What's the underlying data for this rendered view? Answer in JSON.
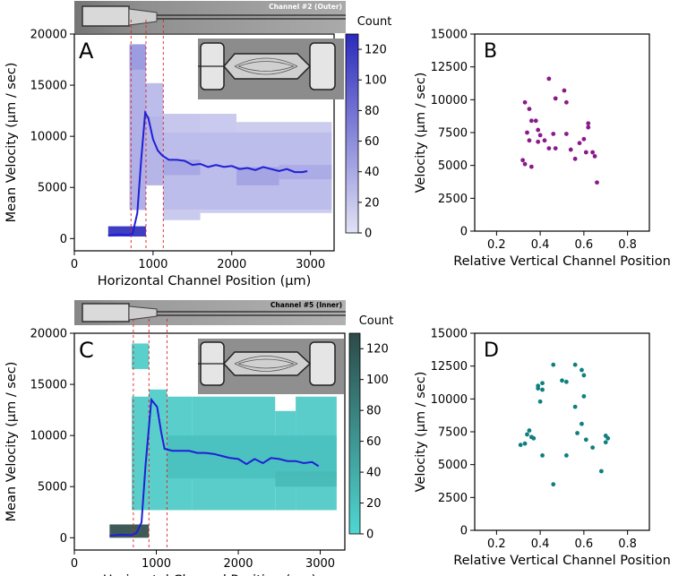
{
  "chart_data": [
    {
      "id": "A",
      "type": "line",
      "panel_label": "A",
      "image_caption": "Channel #2 (Outer)",
      "xlabel": "Horizontal Channel Position (µm)",
      "ylabel": "Mean Velocity (µm / sec)",
      "xlim": [
        0,
        3300
      ],
      "ylim": [
        -1200,
        20000
      ],
      "xticks": [
        0,
        1000,
        2000,
        3000
      ],
      "yticks": [
        0,
        5000,
        10000,
        15000,
        20000
      ],
      "line_color": "#1f1fd6",
      "line": {
        "x": [
          430,
          560,
          680,
          740,
          800,
          850,
          900,
          940,
          1000,
          1060,
          1120,
          1200,
          1300,
          1400,
          1500,
          1600,
          1700,
          1800,
          1900,
          2000,
          2100,
          2200,
          2300,
          2400,
          2500,
          2600,
          2700,
          2800,
          2900,
          2960
        ],
        "y": [
          300,
          400,
          350,
          450,
          2500,
          7800,
          12300,
          11800,
          9700,
          8600,
          8100,
          7700,
          7700,
          7600,
          7200,
          7300,
          7000,
          7200,
          7000,
          7100,
          6800,
          6900,
          6700,
          7000,
          6800,
          6600,
          6800,
          6500,
          6500,
          6600
        ]
      },
      "heatmap": {
        "colorbar_title": "Count",
        "colorbar_ticks": [
          0,
          20,
          40,
          60,
          80,
          100,
          120
        ],
        "vmax": 130,
        "color_low": "#e1e1f6",
        "color_high": "#2b2bbc",
        "cells": [
          {
            "x0": 430,
            "x1": 910,
            "y0": 200,
            "y1": 1200,
            "count": 128
          },
          {
            "x0": 700,
            "x1": 910,
            "y0": 16500,
            "y1": 19000,
            "count": 55
          },
          {
            "x0": 910,
            "x1": 1130,
            "y0": 12000,
            "y1": 15200,
            "count": 30
          },
          {
            "x0": 700,
            "x1": 910,
            "y0": 2800,
            "y1": 16500,
            "count": 40
          },
          {
            "x0": 910,
            "x1": 1130,
            "y0": 5200,
            "y1": 12000,
            "count": 36
          },
          {
            "x0": 1130,
            "x1": 1600,
            "y0": 10400,
            "y1": 12200,
            "count": 22
          },
          {
            "x0": 1600,
            "x1": 2060,
            "y0": 10400,
            "y1": 12200,
            "count": 20
          },
          {
            "x0": 1130,
            "x1": 3270,
            "y0": 2800,
            "y1": 10400,
            "count": 30
          },
          {
            "x0": 2060,
            "x1": 3270,
            "y0": 10400,
            "y1": 11400,
            "count": 18
          },
          {
            "x0": 1130,
            "x1": 1600,
            "y0": 6200,
            "y1": 7700,
            "count": 42
          },
          {
            "x0": 2060,
            "x1": 2600,
            "y0": 5200,
            "y1": 7000,
            "count": 44
          },
          {
            "x0": 2600,
            "x1": 3270,
            "y0": 5800,
            "y1": 7200,
            "count": 40
          },
          {
            "x0": 1130,
            "x1": 1600,
            "y0": 1800,
            "y1": 2800,
            "count": 20
          },
          {
            "x0": 1600,
            "x1": 3270,
            "y0": 2500,
            "y1": 2800,
            "count": 18
          }
        ]
      },
      "red_dashed_lines_x": [
        720,
        910,
        1130
      ]
    },
    {
      "id": "B",
      "type": "scatter",
      "panel_label": "B",
      "xlabel": "Relative Vertical Channel Position",
      "ylabel": "Velocity (µm / sec)",
      "xlim": [
        0.1,
        0.9
      ],
      "ylim": [
        0,
        15000
      ],
      "xticks": [
        0.2,
        0.4,
        0.6,
        0.8
      ],
      "xtick_labels": [
        "0.2",
        "0.4",
        "0.6",
        "0.8"
      ],
      "yticks": [
        0,
        2500,
        5000,
        7500,
        10000,
        12500,
        15000
      ],
      "point_color": "#8a1a8a",
      "points": [
        {
          "x": 0.33,
          "y": 9800
        },
        {
          "x": 0.35,
          "y": 9300
        },
        {
          "x": 0.36,
          "y": 8400
        },
        {
          "x": 0.38,
          "y": 8400
        },
        {
          "x": 0.34,
          "y": 7500
        },
        {
          "x": 0.35,
          "y": 6900
        },
        {
          "x": 0.39,
          "y": 7700
        },
        {
          "x": 0.4,
          "y": 7300
        },
        {
          "x": 0.39,
          "y": 6800
        },
        {
          "x": 0.32,
          "y": 5400
        },
        {
          "x": 0.33,
          "y": 5100
        },
        {
          "x": 0.36,
          "y": 4900
        },
        {
          "x": 0.44,
          "y": 11600
        },
        {
          "x": 0.47,
          "y": 10100
        },
        {
          "x": 0.51,
          "y": 10700
        },
        {
          "x": 0.52,
          "y": 9800
        },
        {
          "x": 0.46,
          "y": 7400
        },
        {
          "x": 0.42,
          "y": 6900
        },
        {
          "x": 0.44,
          "y": 6300
        },
        {
          "x": 0.47,
          "y": 6300
        },
        {
          "x": 0.52,
          "y": 7400
        },
        {
          "x": 0.54,
          "y": 6200
        },
        {
          "x": 0.56,
          "y": 5500
        },
        {
          "x": 0.58,
          "y": 6700
        },
        {
          "x": 0.6,
          "y": 7000
        },
        {
          "x": 0.62,
          "y": 7900
        },
        {
          "x": 0.62,
          "y": 8200
        },
        {
          "x": 0.61,
          "y": 6000
        },
        {
          "x": 0.64,
          "y": 6000
        },
        {
          "x": 0.65,
          "y": 5700
        },
        {
          "x": 0.66,
          "y": 3700
        }
      ]
    },
    {
      "id": "C",
      "type": "line",
      "panel_label": "C",
      "image_caption": "Channel #5 (Inner)",
      "xlabel": "Horizontal Channel Position (µm)",
      "ylabel": "Mean Velocity (µm / sec)",
      "xlim": [
        0,
        3300
      ],
      "ylim": [
        -1200,
        20000
      ],
      "xticks": [
        0,
        1000,
        2000,
        3000
      ],
      "yticks": [
        0,
        5000,
        10000,
        15000,
        20000
      ],
      "line_color": "#1f1fd6",
      "line": {
        "x": [
          430,
          560,
          700,
          760,
          820,
          870,
          940,
          1010,
          1060,
          1100,
          1200,
          1300,
          1400,
          1500,
          1600,
          1700,
          1800,
          1900,
          2000,
          2100,
          2200,
          2300,
          2400,
          2500,
          2600,
          2700,
          2800,
          2900,
          2980
        ],
        "y": [
          200,
          300,
          250,
          500,
          1500,
          7200,
          13500,
          12800,
          10300,
          8700,
          8500,
          8500,
          8500,
          8300,
          8300,
          8200,
          8000,
          7800,
          7700,
          7200,
          7700,
          7300,
          7800,
          7700,
          7500,
          7500,
          7300,
          7400,
          7000
        ]
      },
      "heatmap": {
        "colorbar_title": "Count",
        "colorbar_ticks": [
          0,
          20,
          40,
          60,
          80,
          100,
          120
        ],
        "vmax": 130,
        "color_low": "#4fd7d3",
        "color_high": "#2c4a48",
        "cells": [
          {
            "x0": 430,
            "x1": 910,
            "y0": 0,
            "y1": 1300,
            "count": 128
          },
          {
            "x0": 700,
            "x1": 910,
            "y0": 16500,
            "y1": 19000,
            "count": 10
          },
          {
            "x0": 910,
            "x1": 1130,
            "y0": 11700,
            "y1": 14500,
            "count": 10
          },
          {
            "x0": 700,
            "x1": 910,
            "y0": 2700,
            "y1": 13800,
            "count": 12
          },
          {
            "x0": 910,
            "x1": 1130,
            "y0": 2700,
            "y1": 11700,
            "count": 12
          },
          {
            "x0": 1130,
            "x1": 1440,
            "y0": 2700,
            "y1": 13800,
            "count": 12
          },
          {
            "x0": 1440,
            "x1": 2450,
            "y0": 2700,
            "y1": 13800,
            "count": 13
          },
          {
            "x0": 2450,
            "x1": 2700,
            "y0": 2700,
            "y1": 12400,
            "count": 13
          },
          {
            "x0": 2700,
            "x1": 3200,
            "y0": 2700,
            "y1": 13800,
            "count": 13
          },
          {
            "x0": 1130,
            "x1": 3200,
            "y0": 5800,
            "y1": 10000,
            "count": 20
          },
          {
            "x0": 2450,
            "x1": 3200,
            "y0": 5000,
            "y1": 6500,
            "count": 26
          }
        ]
      },
      "red_dashed_lines_x": [
        720,
        910,
        1130
      ]
    },
    {
      "id": "D",
      "type": "scatter",
      "panel_label": "D",
      "xlabel": "Relative Vertical Channel Position",
      "ylabel": "Velocity (µm / sec)",
      "xlim": [
        0.1,
        0.9
      ],
      "ylim": [
        0,
        15000
      ],
      "xticks": [
        0.2,
        0.4,
        0.6,
        0.8
      ],
      "xtick_labels": [
        "0.2",
        "0.4",
        "0.6",
        "0.8"
      ],
      "yticks": [
        0,
        2500,
        5000,
        7500,
        10000,
        12500,
        15000
      ],
      "point_color": "#0f7f7f",
      "points": [
        {
          "x": 0.46,
          "y": 12600
        },
        {
          "x": 0.56,
          "y": 12600
        },
        {
          "x": 0.59,
          "y": 12200
        },
        {
          "x": 0.6,
          "y": 11800
        },
        {
          "x": 0.39,
          "y": 11000
        },
        {
          "x": 0.41,
          "y": 11200
        },
        {
          "x": 0.5,
          "y": 11400
        },
        {
          "x": 0.52,
          "y": 11300
        },
        {
          "x": 0.39,
          "y": 10800
        },
        {
          "x": 0.41,
          "y": 10700
        },
        {
          "x": 0.4,
          "y": 9800
        },
        {
          "x": 0.6,
          "y": 10200
        },
        {
          "x": 0.56,
          "y": 9400
        },
        {
          "x": 0.59,
          "y": 8100
        },
        {
          "x": 0.57,
          "y": 7400
        },
        {
          "x": 0.31,
          "y": 6500
        },
        {
          "x": 0.33,
          "y": 6600
        },
        {
          "x": 0.34,
          "y": 7300
        },
        {
          "x": 0.35,
          "y": 7600
        },
        {
          "x": 0.36,
          "y": 7100
        },
        {
          "x": 0.37,
          "y": 7000
        },
        {
          "x": 0.61,
          "y": 6900
        },
        {
          "x": 0.64,
          "y": 6300
        },
        {
          "x": 0.7,
          "y": 7200
        },
        {
          "x": 0.71,
          "y": 7000
        },
        {
          "x": 0.7,
          "y": 6700
        },
        {
          "x": 0.41,
          "y": 5700
        },
        {
          "x": 0.52,
          "y": 5700
        },
        {
          "x": 0.68,
          "y": 4500
        },
        {
          "x": 0.46,
          "y": 3500
        }
      ]
    }
  ]
}
